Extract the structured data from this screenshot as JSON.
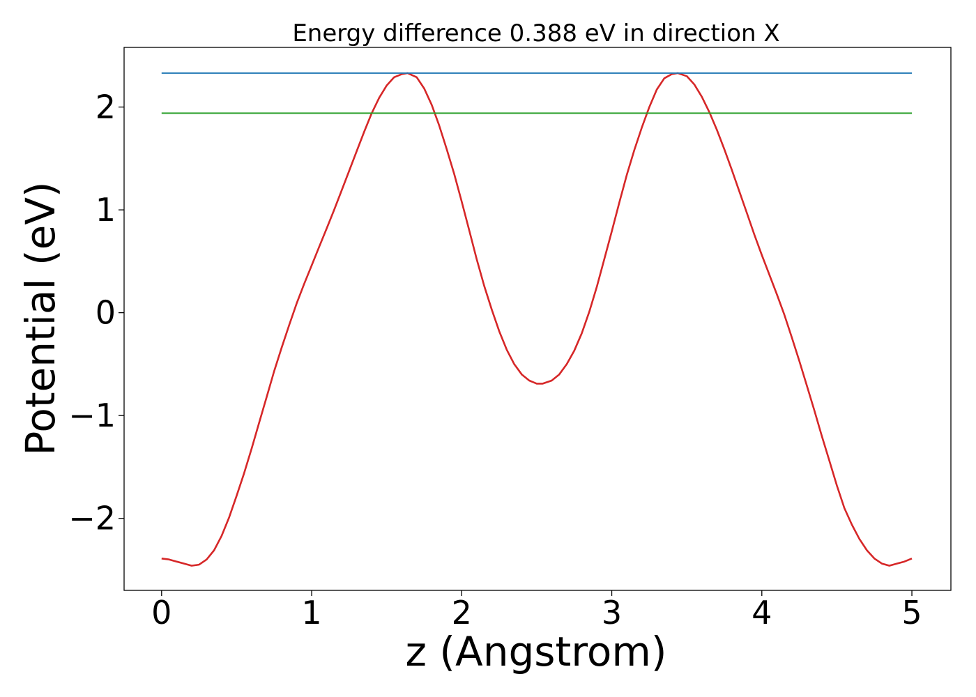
{
  "chart_data": {
    "type": "line",
    "title": "Energy difference 0.388 eV in direction X",
    "xlabel": "z (Angstrom)",
    "ylabel": "Potential (eV)",
    "xlim": [
      -0.25,
      5.26
    ],
    "ylim": [
      -2.7,
      2.58
    ],
    "xticks": [
      0,
      1,
      2,
      3,
      4,
      5
    ],
    "xtick_labels": [
      "0",
      "1",
      "2",
      "3",
      "4",
      "5"
    ],
    "yticks": [
      -2,
      -1,
      0,
      1,
      2
    ],
    "ytick_labels": [
      "−2",
      "−1",
      "0",
      "1",
      "2"
    ],
    "grid": false,
    "series": [
      {
        "color": "#d62728",
        "style": "curve",
        "x": [
          0.0,
          0.05,
          0.1,
          0.15,
          0.2,
          0.25,
          0.3,
          0.35,
          0.4,
          0.45,
          0.5,
          0.55,
          0.6,
          0.65,
          0.7,
          0.75,
          0.8,
          0.85,
          0.9,
          0.95,
          1.0,
          1.05,
          1.1,
          1.15,
          1.2,
          1.25,
          1.3,
          1.35,
          1.4,
          1.45,
          1.5,
          1.55,
          1.6,
          1.64,
          1.7,
          1.75,
          1.8,
          1.85,
          1.9,
          1.95,
          2.0,
          2.05,
          2.1,
          2.15,
          2.2,
          2.25,
          2.3,
          2.35,
          2.4,
          2.45,
          2.5,
          2.54,
          2.6,
          2.65,
          2.7,
          2.75,
          2.8,
          2.85,
          2.9,
          2.95,
          3.0,
          3.05,
          3.1,
          3.15,
          3.2,
          3.25,
          3.3,
          3.35,
          3.4,
          3.44,
          3.5,
          3.55,
          3.6,
          3.65,
          3.7,
          3.75,
          3.8,
          3.85,
          3.9,
          3.95,
          4.0,
          4.05,
          4.1,
          4.15,
          4.2,
          4.25,
          4.3,
          4.35,
          4.4,
          4.45,
          4.5,
          4.55,
          4.6,
          4.65,
          4.7,
          4.75,
          4.8,
          4.85,
          4.9,
          4.95,
          5.0
        ],
        "y": [
          -2.39,
          -2.4,
          -2.42,
          -2.44,
          -2.46,
          -2.45,
          -2.4,
          -2.31,
          -2.17,
          -1.99,
          -1.78,
          -1.56,
          -1.32,
          -1.07,
          -0.82,
          -0.57,
          -0.34,
          -0.12,
          0.09,
          0.28,
          0.46,
          0.64,
          0.82,
          1.0,
          1.19,
          1.38,
          1.57,
          1.76,
          1.94,
          2.09,
          2.21,
          2.29,
          2.32,
          2.33,
          2.29,
          2.18,
          2.02,
          1.82,
          1.59,
          1.35,
          1.08,
          0.8,
          0.52,
          0.26,
          0.03,
          -0.18,
          -0.36,
          -0.5,
          -0.6,
          -0.66,
          -0.69,
          -0.69,
          -0.66,
          -0.6,
          -0.5,
          -0.37,
          -0.2,
          0.01,
          0.25,
          0.52,
          0.79,
          1.07,
          1.34,
          1.58,
          1.8,
          2.0,
          2.17,
          2.28,
          2.32,
          2.33,
          2.3,
          2.22,
          2.1,
          1.95,
          1.78,
          1.59,
          1.39,
          1.18,
          0.97,
          0.76,
          0.56,
          0.37,
          0.18,
          -0.02,
          -0.24,
          -0.47,
          -0.71,
          -0.95,
          -1.2,
          -1.44,
          -1.68,
          -1.9,
          -2.06,
          -2.2,
          -2.31,
          -2.39,
          -2.44,
          -2.46,
          -2.44,
          -2.42,
          -2.39
        ]
      },
      {
        "color": "#1f77b4",
        "style": "hline",
        "x": [
          0,
          5
        ],
        "y": [
          2.33,
          2.33
        ]
      },
      {
        "color": "#2ca02c",
        "style": "hline",
        "x": [
          0,
          5
        ],
        "y": [
          1.94,
          1.94
        ]
      }
    ]
  }
}
